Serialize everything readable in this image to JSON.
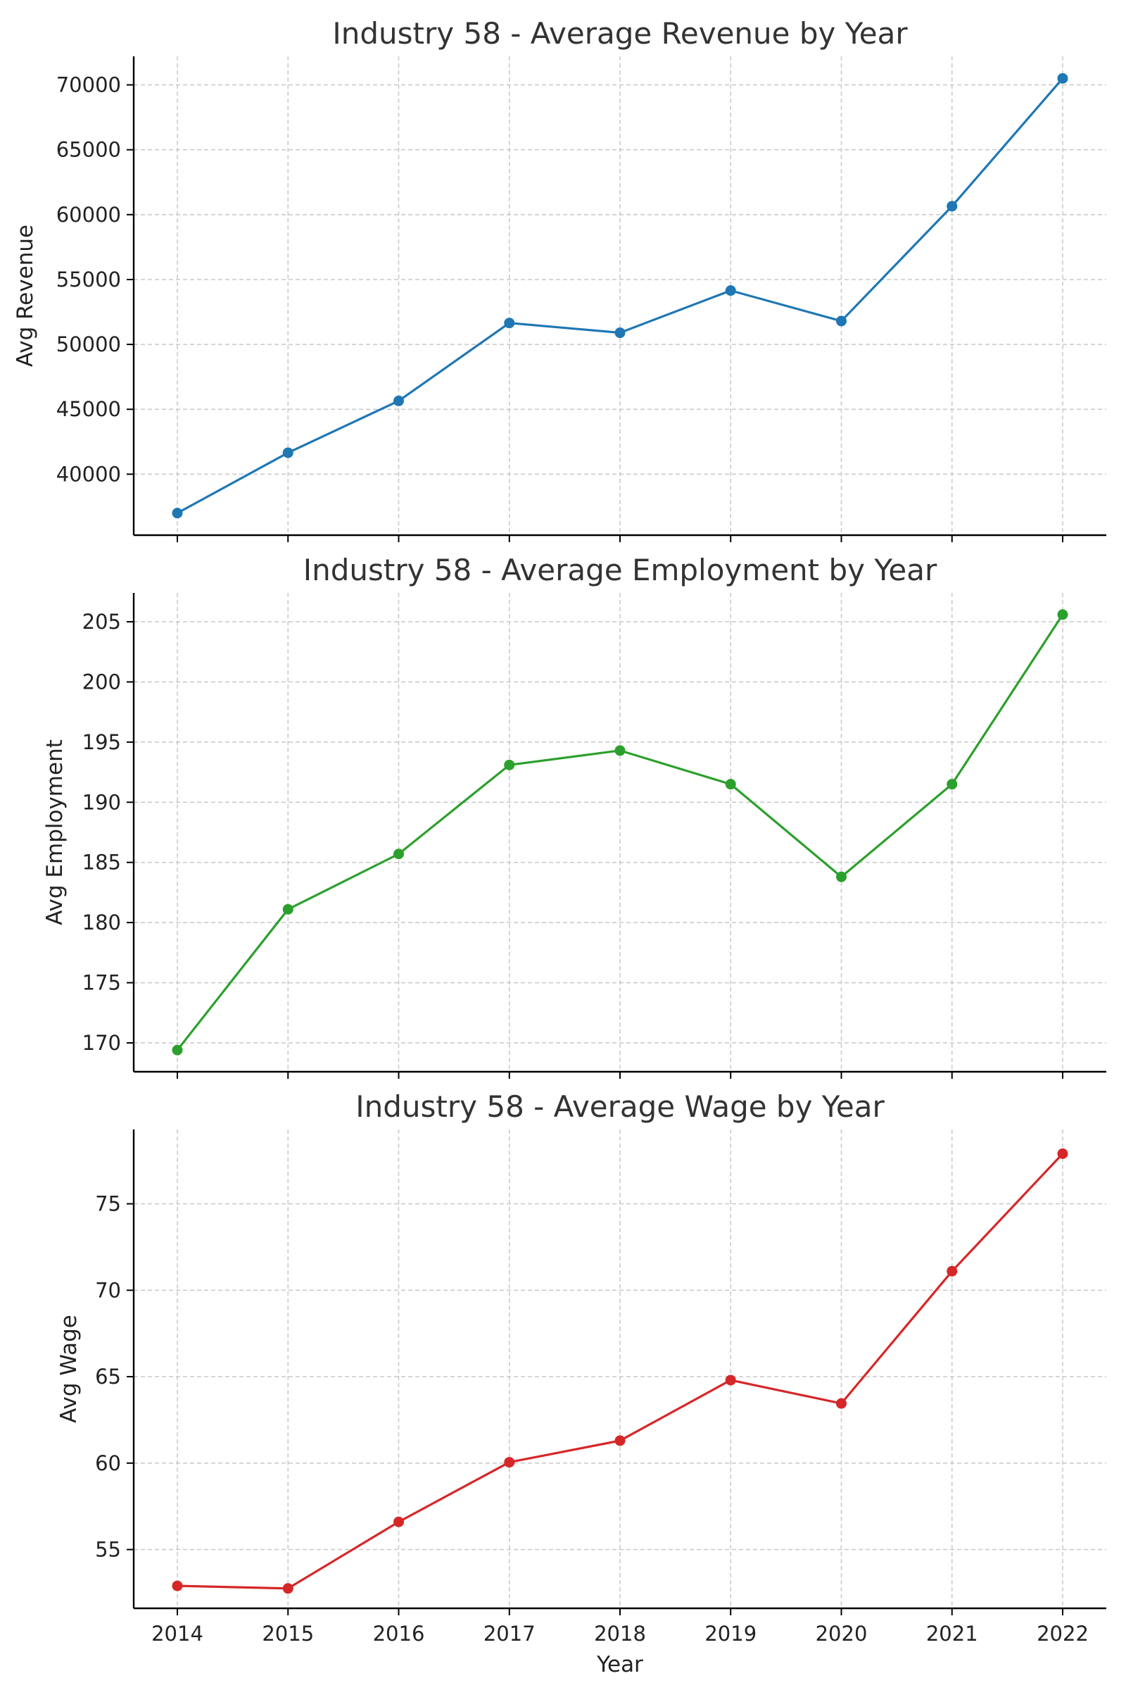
{
  "chart_data": [
    {
      "type": "line",
      "title": "Industry 58 - Average Revenue by Year",
      "xlabel": "",
      "ylabel": "Avg Revenue",
      "x": [
        2014,
        2015,
        2016,
        2017,
        2018,
        2019,
        2020,
        2021,
        2022
      ],
      "x_tick_labels_visible": false,
      "ylim": [
        35300,
        72200
      ],
      "yticks": [
        40000,
        45000,
        50000,
        55000,
        60000,
        65000,
        70000
      ],
      "grid": true,
      "color": "#1f77b4",
      "series": [
        {
          "values": [
            37000,
            41650,
            45650,
            51650,
            50900,
            54150,
            51800,
            60650,
            70500
          ]
        }
      ]
    },
    {
      "type": "line",
      "title": "Industry 58 - Average Employment by Year",
      "xlabel": "",
      "ylabel": "Avg Employment",
      "x": [
        2014,
        2015,
        2016,
        2017,
        2018,
        2019,
        2020,
        2021,
        2022
      ],
      "x_tick_labels_visible": false,
      "ylim": [
        167.6,
        207.4
      ],
      "yticks": [
        170,
        175,
        180,
        185,
        190,
        195,
        200,
        205
      ],
      "grid": true,
      "color": "#2ca02c",
      "series": [
        {
          "values": [
            169.4,
            181.1,
            185.7,
            193.1,
            194.3,
            191.5,
            183.8,
            191.5,
            205.6
          ]
        }
      ]
    },
    {
      "type": "line",
      "title": "Industry 58 - Average Wage by Year",
      "xlabel": "Year",
      "ylabel": "Avg Wage",
      "x": [
        2014,
        2015,
        2016,
        2017,
        2018,
        2019,
        2020,
        2021,
        2022
      ],
      "x_tick_labels_visible": true,
      "ylim": [
        51.6,
        79.3
      ],
      "yticks": [
        55,
        60,
        65,
        70,
        75
      ],
      "grid": true,
      "color": "#d62728",
      "series": [
        {
          "values": [
            52.9,
            52.75,
            56.6,
            60.05,
            61.3,
            64.8,
            63.45,
            71.1,
            77.9
          ]
        }
      ]
    }
  ]
}
